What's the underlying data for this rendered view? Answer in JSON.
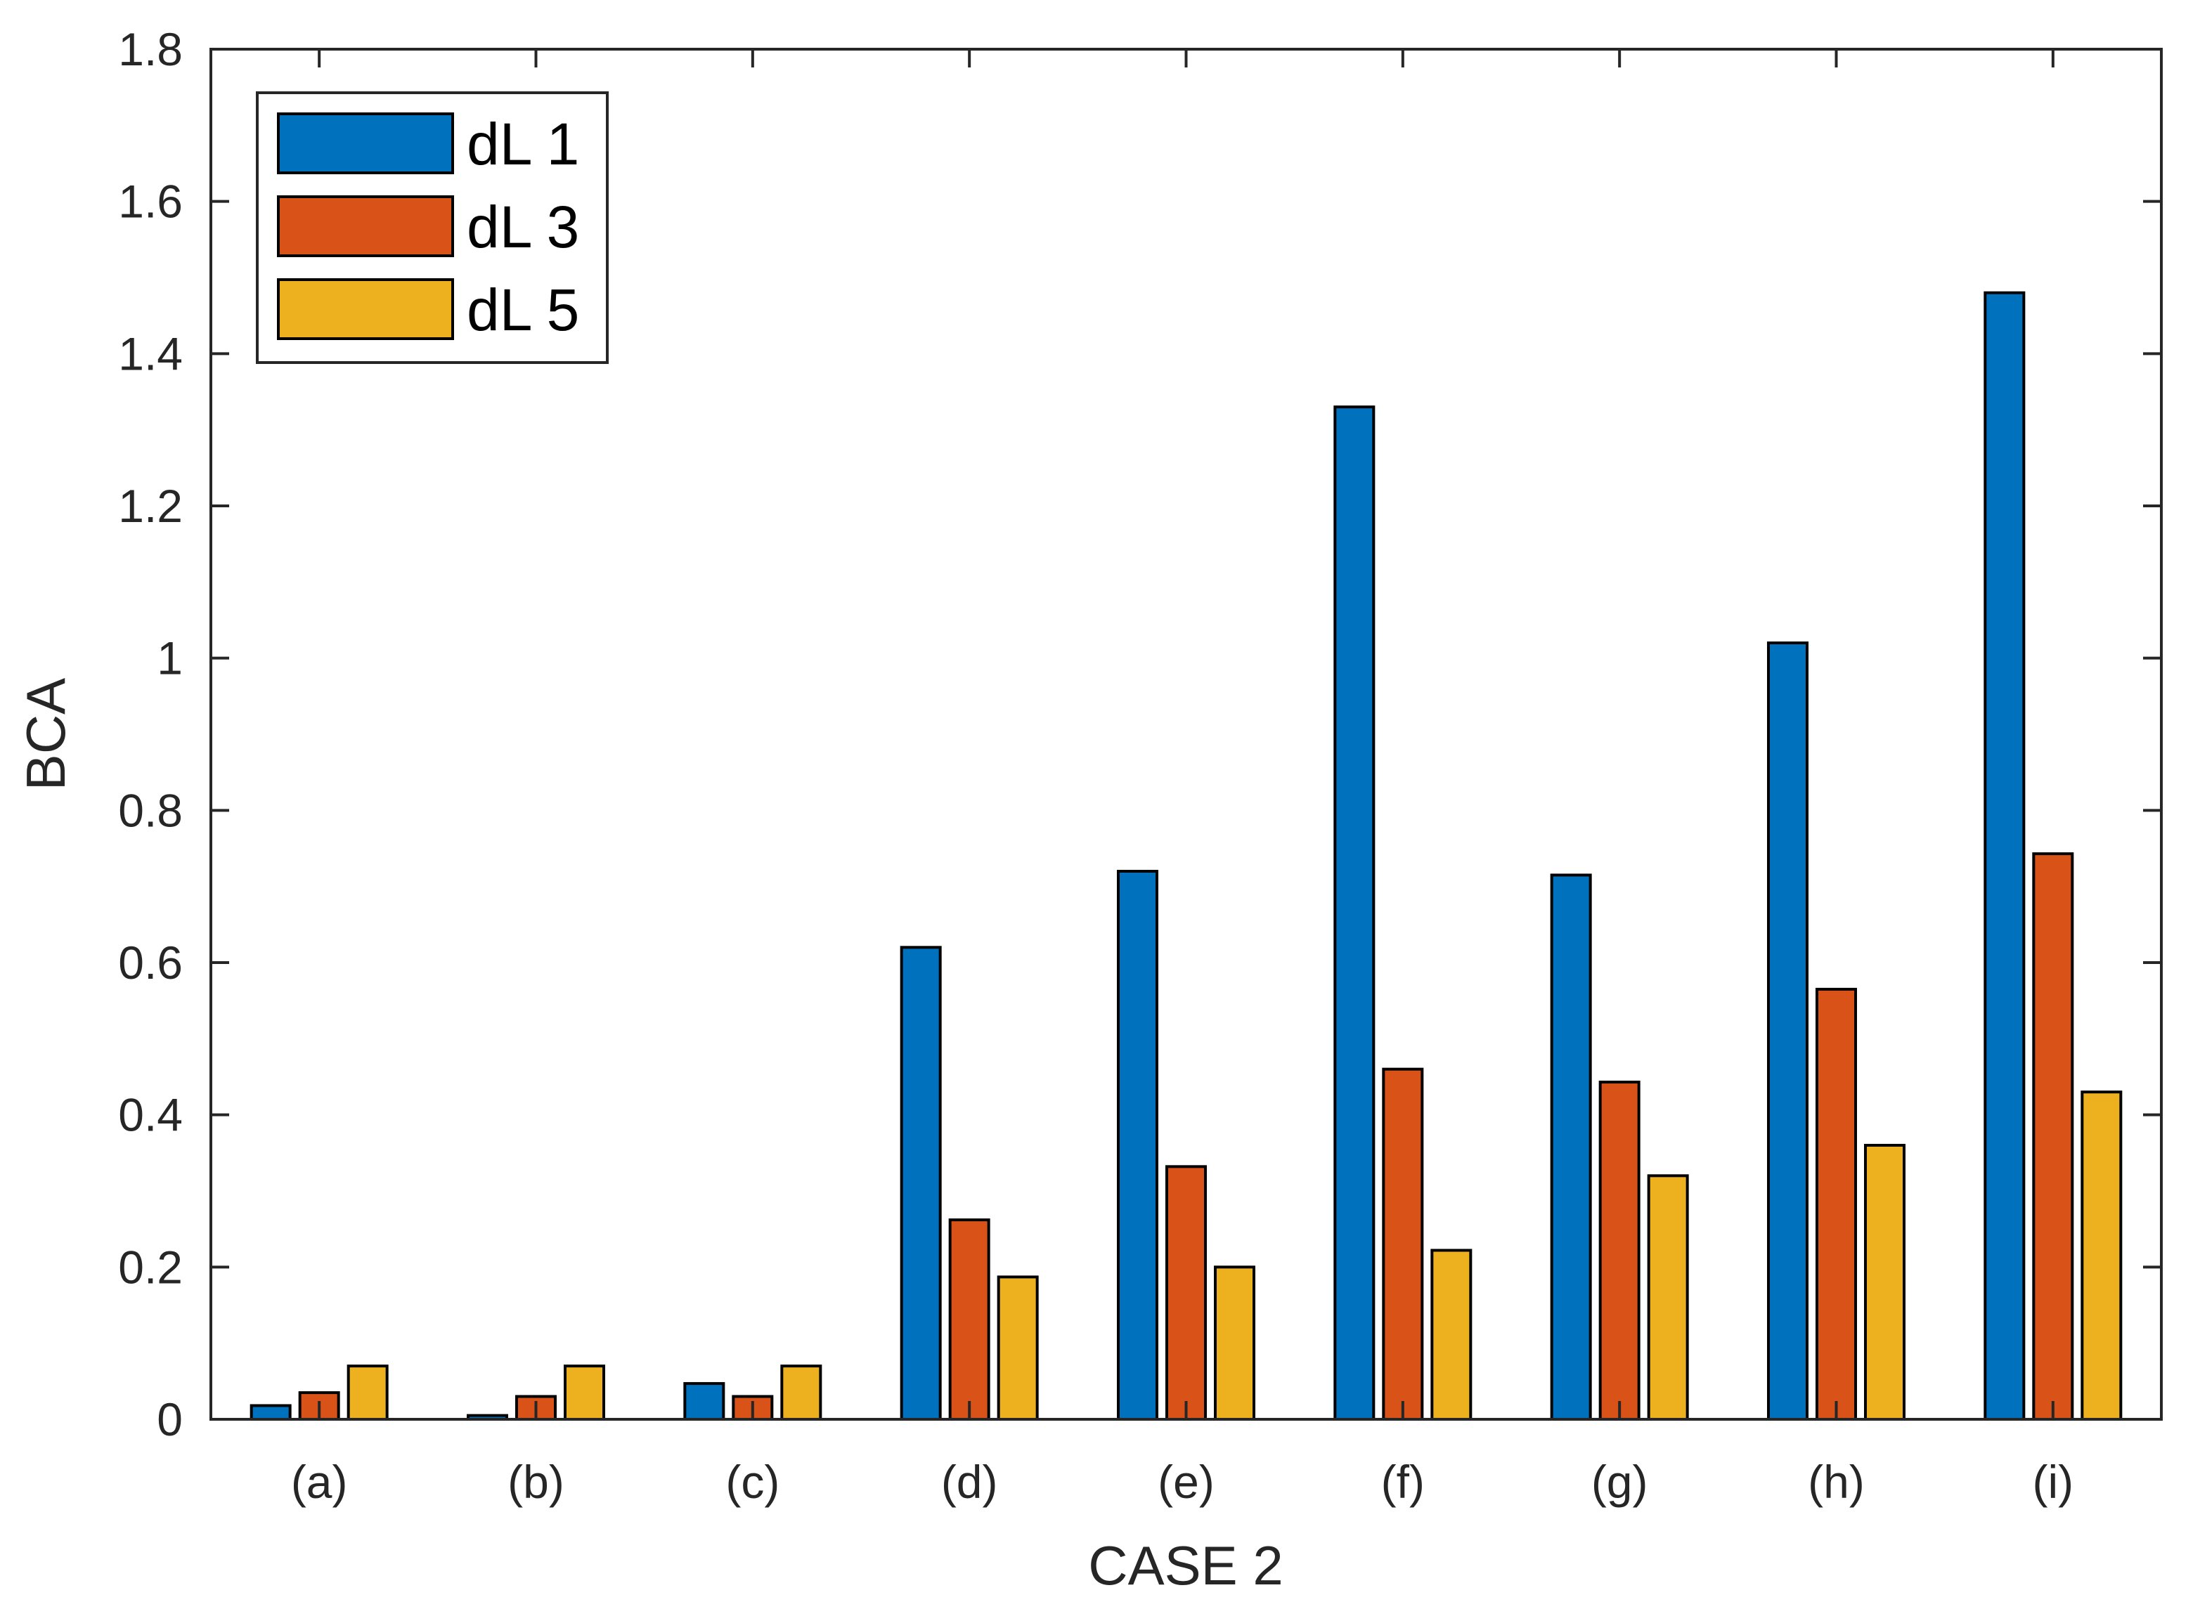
{
  "chart_data": {
    "type": "bar",
    "title": "",
    "xlabel": "CASE 2",
    "ylabel": "BCA",
    "ylim": [
      0,
      1.8
    ],
    "yticks": [
      0,
      0.2,
      0.4,
      0.6,
      0.8,
      1,
      1.2,
      1.4,
      1.6,
      1.8
    ],
    "ytick_labels": [
      "0",
      "0.2",
      "0.4",
      "0.6",
      "0.8",
      "1",
      "1.2",
      "1.4",
      "1.6",
      "1.8"
    ],
    "categories": [
      "(a)",
      "(b)",
      "(c)",
      "(d)",
      "(e)",
      "(f)",
      "(g)",
      "(h)",
      "(i)"
    ],
    "legend_position": "top-left",
    "grid": false,
    "series": [
      {
        "name": "dL 1",
        "color": "#0072BD",
        "values": [
          0.018,
          0.005,
          0.047,
          0.62,
          0.72,
          1.33,
          0.715,
          1.02,
          1.48
        ]
      },
      {
        "name": "dL 3",
        "color": "#D95319",
        "values": [
          0.035,
          0.03,
          0.03,
          0.262,
          0.332,
          0.46,
          0.443,
          0.565,
          0.743
        ]
      },
      {
        "name": "dL 5",
        "color": "#EDB120",
        "values": [
          0.07,
          0.07,
          0.07,
          0.187,
          0.2,
          0.222,
          0.32,
          0.36,
          0.43
        ]
      }
    ]
  }
}
